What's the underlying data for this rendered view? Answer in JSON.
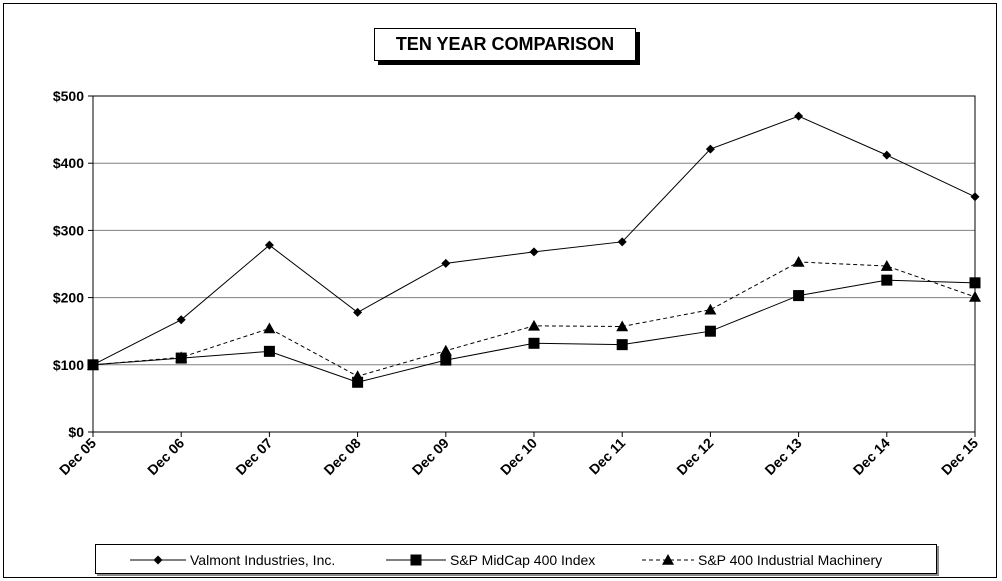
{
  "chart_data": {
    "type": "line",
    "title": "TEN YEAR COMPARISON",
    "categories": [
      "Dec 05",
      "Dec 06",
      "Dec 07",
      "Dec 08",
      "Dec 09",
      "Dec 10",
      "Dec 11",
      "Dec 12",
      "Dec 13",
      "Dec 14",
      "Dec 15"
    ],
    "y_ticks": [
      "$0",
      "$100",
      "$200",
      "$300",
      "$400",
      "$500"
    ],
    "ylim": [
      0,
      500
    ],
    "grid": true,
    "legend_position": "bottom",
    "series": [
      {
        "name": "Valmont Industries, Inc.",
        "marker": "diamond",
        "line": "solid",
        "values": [
          100,
          167,
          278,
          178,
          251,
          268,
          283,
          421,
          470,
          412,
          350
        ]
      },
      {
        "name": "S&P MidCap 400 Index",
        "marker": "square",
        "line": "solid",
        "values": [
          100,
          110,
          120,
          74,
          107,
          132,
          130,
          150,
          203,
          226,
          222
        ]
      },
      {
        "name": "S&P 400 Industrial Machinery",
        "marker": "triangle",
        "line": "dashed",
        "values": [
          100,
          111,
          154,
          83,
          121,
          158,
          157,
          182,
          253,
          247,
          201
        ]
      }
    ],
    "colors": {
      "line": "#000000",
      "grid": "#808080"
    }
  }
}
